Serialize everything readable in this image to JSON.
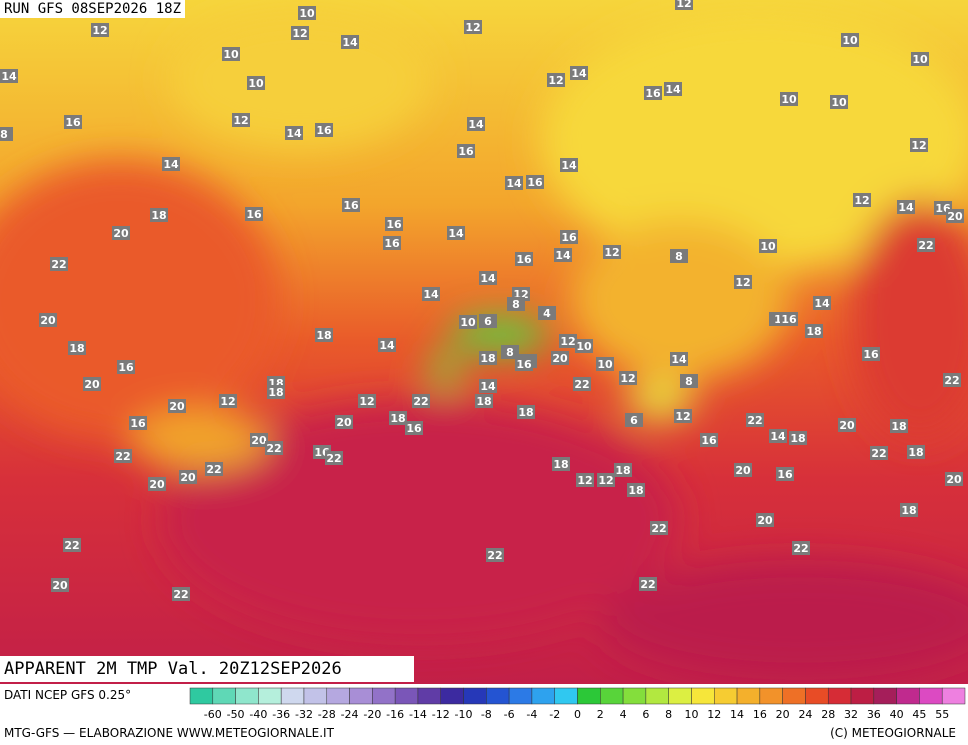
{
  "header": {
    "run": "RUN GFS 08SEP2026 18Z"
  },
  "map": {
    "labels": [
      12,
      10,
      12,
      14,
      10,
      10,
      14,
      12,
      12,
      14,
      12,
      10,
      10,
      16,
      12,
      14,
      16,
      14,
      16,
      14,
      10,
      10,
      8,
      14,
      16,
      14,
      12,
      14,
      16,
      18,
      16,
      16,
      12,
      14,
      16,
      20,
      20,
      16,
      14,
      16,
      16,
      12,
      10,
      22,
      22,
      16,
      14,
      8,
      14,
      12,
      12,
      14,
      14,
      20,
      18,
      10,
      6,
      8,
      4,
      1,
      16,
      18,
      18,
      14,
      12,
      10,
      8,
      6,
      18,
      16,
      20,
      16,
      10,
      14,
      16,
      20,
      18,
      22,
      12,
      8,
      22,
      18,
      14,
      20,
      12,
      12,
      22,
      18,
      16,
      20,
      18,
      16,
      18,
      6,
      12,
      22,
      16,
      14,
      18,
      20,
      18,
      20,
      22,
      16,
      22,
      22,
      22,
      18,
      22,
      20,
      20,
      18,
      18,
      12,
      12,
      20,
      16,
      18,
      20,
      18,
      20,
      22,
      22,
      22,
      22,
      20,
      22,
      22
    ]
  },
  "footer": {
    "product": "APPARENT 2M TMP Val. 20Z12SEP2026",
    "source": "DATI NCEP GFS 0.25°",
    "credit": "MTG-GFS — ELABORAZIONE WWW.METEOGIORNALE.IT",
    "copyright": "(C) METEOGIORNALE"
  },
  "colorbar": {
    "ticks": [
      -60,
      -50,
      -40,
      -36,
      -32,
      -28,
      -24,
      -20,
      -16,
      -14,
      -12,
      -10,
      -8,
      -6,
      -4,
      -2,
      0,
      2,
      4,
      6,
      8,
      10,
      12,
      14,
      16,
      20,
      24,
      28,
      32,
      36,
      40,
      45,
      55
    ]
  }
}
